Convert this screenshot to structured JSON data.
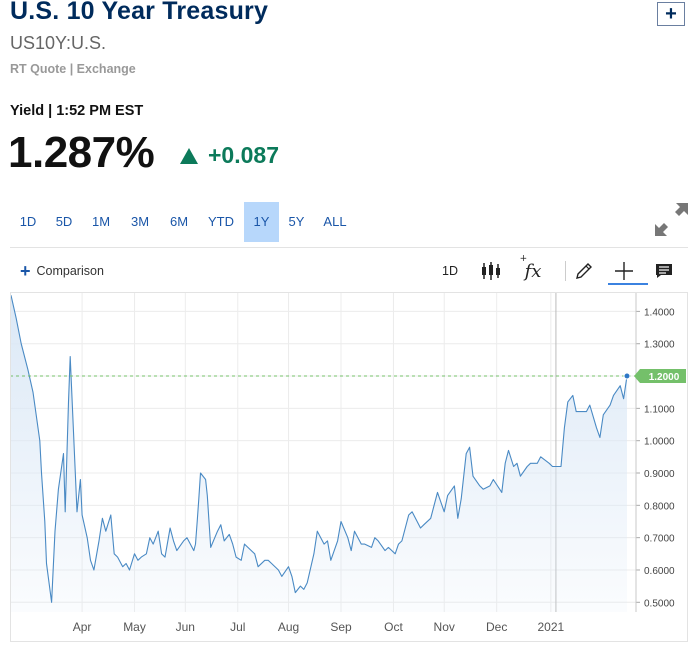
{
  "header": {
    "title": "U.S. 10 Year Treasury",
    "add_label": "+",
    "symbol": "US10Y:U.S.",
    "quote_source": "RT Quote | Exchange"
  },
  "quote": {
    "yield_time": "Yield | 1:52 PM EST",
    "price": "1.287%",
    "change": "+0.087",
    "change_color": "#0c7a5a",
    "change_icon": "triangle-up-icon"
  },
  "ranges": {
    "items": [
      "1D",
      "5D",
      "1M",
      "3M",
      "6M",
      "YTD",
      "1Y",
      "5Y",
      "ALL"
    ],
    "active": "1Y"
  },
  "toolbar": {
    "comparison_label": "Comparison",
    "interval_label": "1D",
    "fx_label": "fx",
    "icons": [
      "candlestick-icon",
      "function-icon",
      "pencil-icon",
      "crosshair-icon",
      "comment-icon"
    ]
  },
  "chart_data": {
    "type": "area",
    "title": "",
    "xlabel": "",
    "ylabel": "",
    "x_ticks": [
      "Apr",
      "May",
      "Jun",
      "Jul",
      "Aug",
      "Sep",
      "Oct",
      "Nov",
      "Dec",
      "2021"
    ],
    "y_ticks": [
      "1.4000",
      "1.3000",
      "1.2000",
      "1.1000",
      "1.0000",
      "0.9000",
      "0.8000",
      "0.7000",
      "0.6000",
      "0.5000"
    ],
    "ylim": [
      0.47,
      1.46
    ],
    "grid": true,
    "line_color": "#4a8ac4",
    "fill_color": "#dbe8f6",
    "reference_line": {
      "value": 1.2,
      "label": "1.2000",
      "color": "#74c06a"
    },
    "series": [
      {
        "values": [
          [
            "2020-02-14",
            1.45
          ],
          [
            "2020-02-17",
            1.38
          ],
          [
            "2020-02-20",
            1.3
          ],
          [
            "2020-02-24",
            1.22
          ],
          [
            "2020-02-27",
            1.15
          ],
          [
            "2020-03-02",
            1.0
          ],
          [
            "2020-03-03",
            0.9
          ],
          [
            "2020-03-05",
            0.75
          ],
          [
            "2020-03-06",
            0.62
          ],
          [
            "2020-03-09",
            0.5
          ],
          [
            "2020-03-11",
            0.72
          ],
          [
            "2020-03-13",
            0.85
          ],
          [
            "2020-03-16",
            0.96
          ],
          [
            "2020-03-17",
            0.78
          ],
          [
            "2020-03-19",
            1.12
          ],
          [
            "2020-03-20",
            1.26
          ],
          [
            "2020-03-23",
            0.9
          ],
          [
            "2020-03-24",
            0.78
          ],
          [
            "2020-03-26",
            0.88
          ],
          [
            "2020-03-27",
            0.77
          ],
          [
            "2020-03-30",
            0.7
          ],
          [
            "2020-04-01",
            0.63
          ],
          [
            "2020-04-03",
            0.6
          ],
          [
            "2020-04-06",
            0.69
          ],
          [
            "2020-04-08",
            0.76
          ],
          [
            "2020-04-10",
            0.72
          ],
          [
            "2020-04-13",
            0.77
          ],
          [
            "2020-04-15",
            0.65
          ],
          [
            "2020-04-17",
            0.64
          ],
          [
            "2020-04-20",
            0.61
          ],
          [
            "2020-04-22",
            0.62
          ],
          [
            "2020-04-24",
            0.6
          ],
          [
            "2020-04-27",
            0.65
          ],
          [
            "2020-04-29",
            0.63
          ],
          [
            "2020-05-01",
            0.64
          ],
          [
            "2020-05-04",
            0.65
          ],
          [
            "2020-05-06",
            0.7
          ],
          [
            "2020-05-08",
            0.68
          ],
          [
            "2020-05-11",
            0.72
          ],
          [
            "2020-05-13",
            0.65
          ],
          [
            "2020-05-15",
            0.64
          ],
          [
            "2020-05-18",
            0.73
          ],
          [
            "2020-05-20",
            0.69
          ],
          [
            "2020-05-22",
            0.66
          ],
          [
            "2020-05-26",
            0.69
          ],
          [
            "2020-05-28",
            0.7
          ],
          [
            "2020-06-01",
            0.66
          ],
          [
            "2020-06-02",
            0.68
          ],
          [
            "2020-06-03",
            0.75
          ],
          [
            "2020-06-04",
            0.82
          ],
          [
            "2020-06-05",
            0.9
          ],
          [
            "2020-06-08",
            0.88
          ],
          [
            "2020-06-09",
            0.83
          ],
          [
            "2020-06-10",
            0.75
          ],
          [
            "2020-06-11",
            0.67
          ],
          [
            "2020-06-15",
            0.72
          ],
          [
            "2020-06-17",
            0.74
          ],
          [
            "2020-06-19",
            0.69
          ],
          [
            "2020-06-22",
            0.71
          ],
          [
            "2020-06-24",
            0.68
          ],
          [
            "2020-06-26",
            0.64
          ],
          [
            "2020-06-29",
            0.63
          ],
          [
            "2020-07-01",
            0.68
          ],
          [
            "2020-07-03",
            0.67
          ],
          [
            "2020-07-07",
            0.65
          ],
          [
            "2020-07-09",
            0.61
          ],
          [
            "2020-07-13",
            0.63
          ],
          [
            "2020-07-15",
            0.63
          ],
          [
            "2020-07-17",
            0.62
          ],
          [
            "2020-07-21",
            0.6
          ],
          [
            "2020-07-23",
            0.58
          ],
          [
            "2020-07-27",
            0.61
          ],
          [
            "2020-07-29",
            0.58
          ],
          [
            "2020-07-31",
            0.53
          ],
          [
            "2020-08-03",
            0.55
          ],
          [
            "2020-08-05",
            0.54
          ],
          [
            "2020-08-07",
            0.56
          ],
          [
            "2020-08-11",
            0.65
          ],
          [
            "2020-08-13",
            0.72
          ],
          [
            "2020-08-17",
            0.68
          ],
          [
            "2020-08-19",
            0.69
          ],
          [
            "2020-08-21",
            0.63
          ],
          [
            "2020-08-25",
            0.69
          ],
          [
            "2020-08-27",
            0.75
          ],
          [
            "2020-08-31",
            0.7
          ],
          [
            "2020-09-02",
            0.66
          ],
          [
            "2020-09-04",
            0.72
          ],
          [
            "2020-09-08",
            0.68
          ],
          [
            "2020-09-10",
            0.68
          ],
          [
            "2020-09-14",
            0.67
          ],
          [
            "2020-09-16",
            0.7
          ],
          [
            "2020-09-18",
            0.69
          ],
          [
            "2020-09-22",
            0.66
          ],
          [
            "2020-09-24",
            0.67
          ],
          [
            "2020-09-28",
            0.65
          ],
          [
            "2020-09-30",
            0.68
          ],
          [
            "2020-10-02",
            0.69
          ],
          [
            "2020-10-06",
            0.77
          ],
          [
            "2020-10-08",
            0.78
          ],
          [
            "2020-10-13",
            0.73
          ],
          [
            "2020-10-15",
            0.74
          ],
          [
            "2020-10-19",
            0.76
          ],
          [
            "2020-10-21",
            0.8
          ],
          [
            "2020-10-23",
            0.84
          ],
          [
            "2020-10-27",
            0.78
          ],
          [
            "2020-10-29",
            0.83
          ],
          [
            "2020-11-02",
            0.86
          ],
          [
            "2020-11-04",
            0.76
          ],
          [
            "2020-11-06",
            0.82
          ],
          [
            "2020-11-09",
            0.96
          ],
          [
            "2020-11-11",
            0.98
          ],
          [
            "2020-11-13",
            0.89
          ],
          [
            "2020-11-17",
            0.86
          ],
          [
            "2020-11-19",
            0.85
          ],
          [
            "2020-11-23",
            0.86
          ],
          [
            "2020-11-25",
            0.88
          ],
          [
            "2020-11-30",
            0.84
          ],
          [
            "2020-12-02",
            0.93
          ],
          [
            "2020-12-04",
            0.97
          ],
          [
            "2020-12-07",
            0.92
          ],
          [
            "2020-12-09",
            0.93
          ],
          [
            "2020-12-11",
            0.89
          ],
          [
            "2020-12-15",
            0.92
          ],
          [
            "2020-12-17",
            0.93
          ],
          [
            "2020-12-21",
            0.93
          ],
          [
            "2020-12-23",
            0.95
          ],
          [
            "2020-12-28",
            0.93
          ],
          [
            "2020-12-30",
            0.92
          ],
          [
            "2021-01-04",
            0.92
          ],
          [
            "2021-01-06",
            1.04
          ],
          [
            "2021-01-08",
            1.12
          ],
          [
            "2021-01-11",
            1.14
          ],
          [
            "2021-01-13",
            1.09
          ],
          [
            "2021-01-15",
            1.09
          ],
          [
            "2021-01-19",
            1.09
          ],
          [
            "2021-01-21",
            1.11
          ],
          [
            "2021-01-25",
            1.04
          ],
          [
            "2021-01-27",
            1.01
          ],
          [
            "2021-01-29",
            1.08
          ],
          [
            "2021-02-02",
            1.11
          ],
          [
            "2021-02-04",
            1.14
          ],
          [
            "2021-02-08",
            1.17
          ],
          [
            "2021-02-10",
            1.13
          ],
          [
            "2021-02-12",
            1.2
          ]
        ]
      }
    ]
  }
}
